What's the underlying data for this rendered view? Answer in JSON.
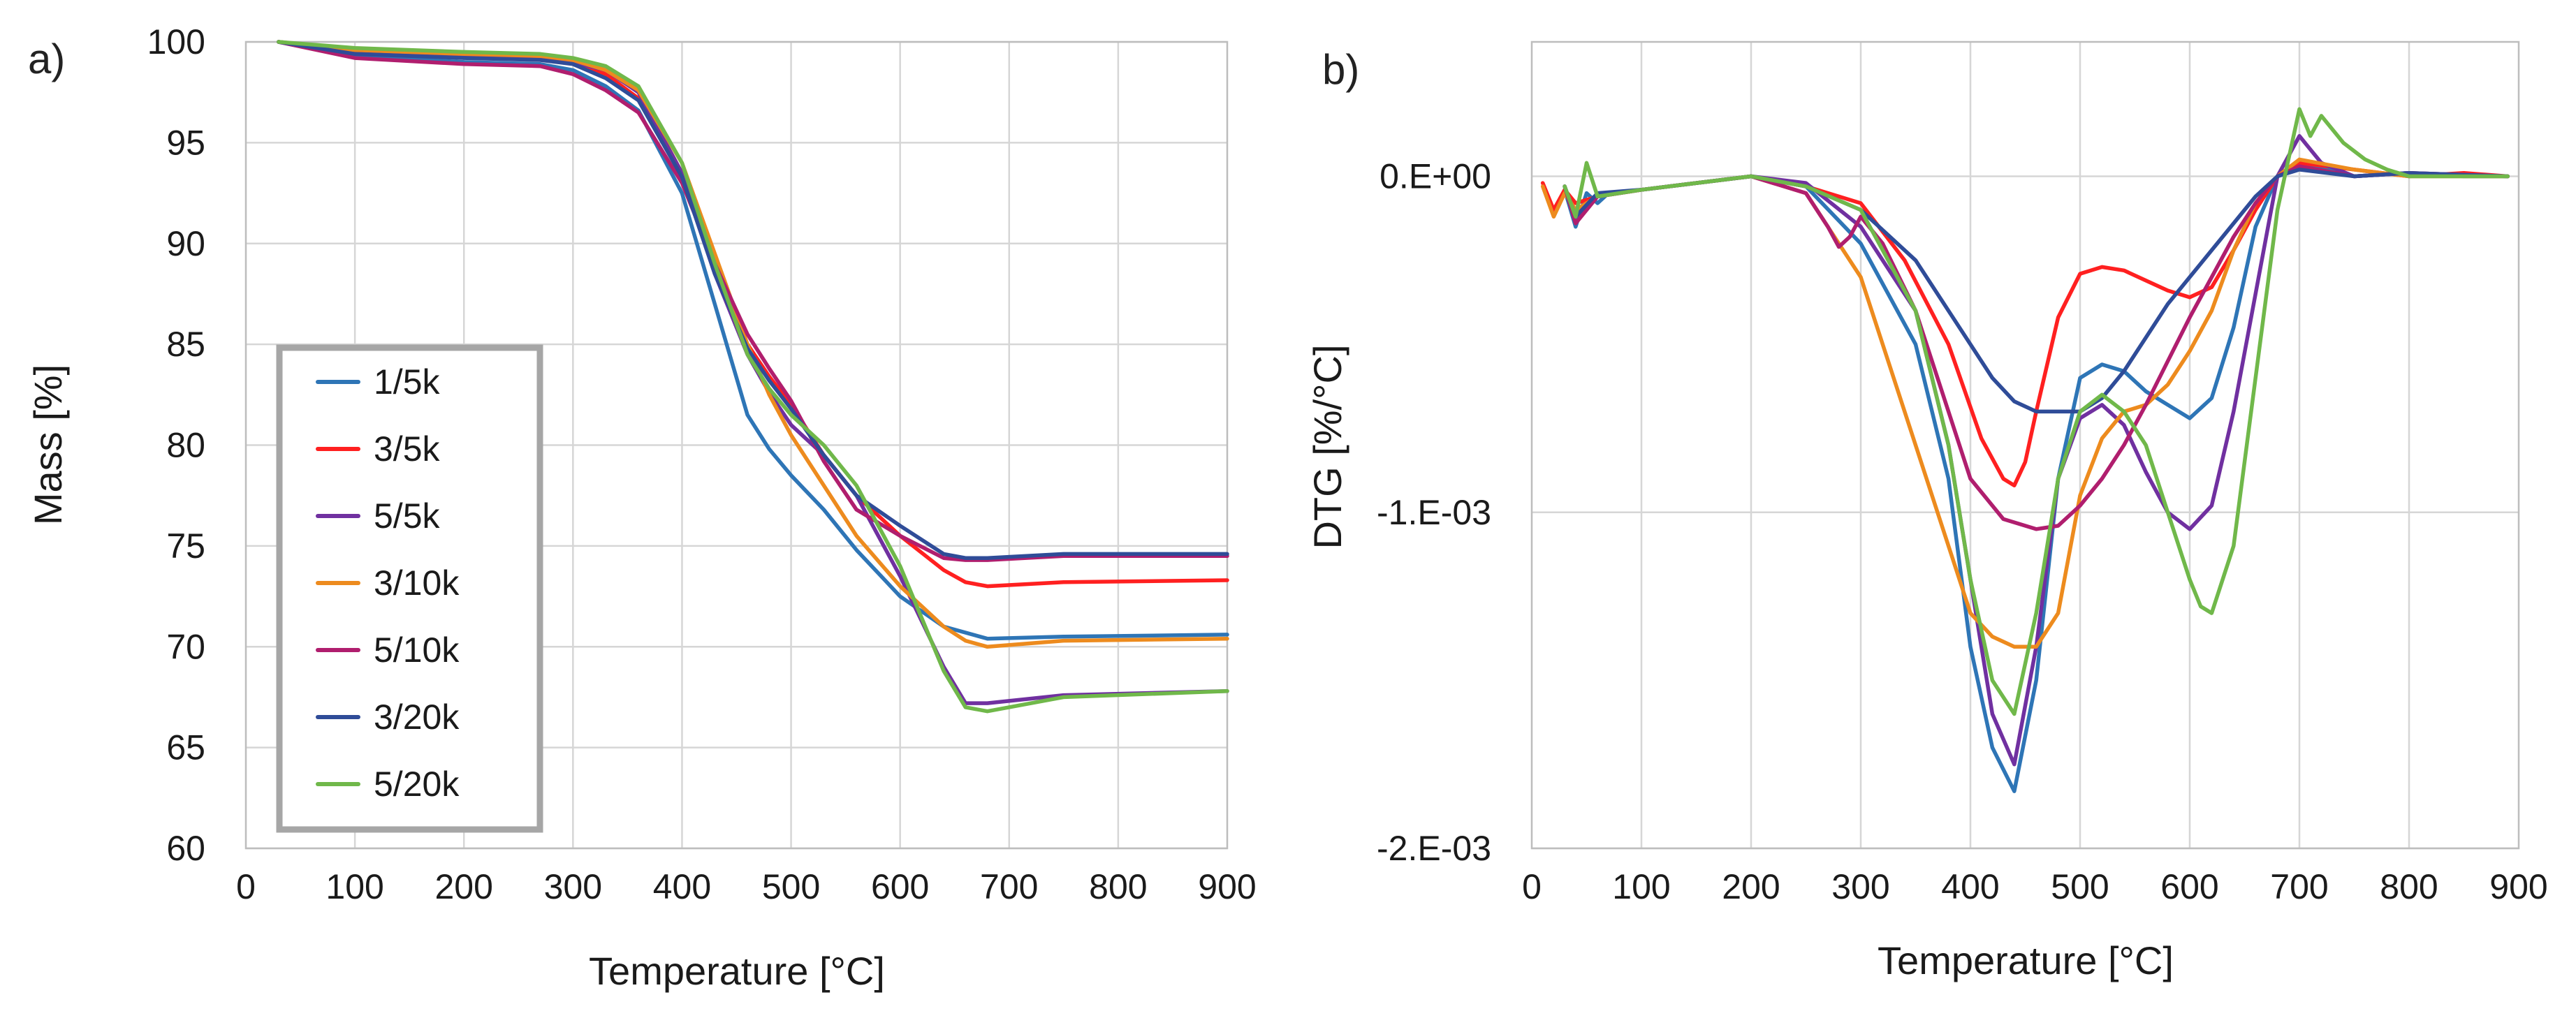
{
  "chart_data": [
    {
      "type": "line",
      "panel_label": "a)",
      "title": "",
      "xlabel": "Temperature [°C]",
      "ylabel": "Mass [%]",
      "xlim": [
        0,
        900
      ],
      "ylim": [
        60,
        100
      ],
      "xticks": [
        0,
        100,
        200,
        300,
        400,
        500,
        600,
        700,
        800,
        900
      ],
      "yticks": [
        60,
        65,
        70,
        75,
        80,
        85,
        90,
        95,
        100
      ],
      "grid": true,
      "legend_position": "lower-left",
      "series": [
        {
          "name": "1/5k",
          "color": "#2E75B6",
          "x": [
            30,
            100,
            200,
            270,
            300,
            330,
            360,
            400,
            430,
            460,
            480,
            500,
            530,
            560,
            600,
            640,
            680,
            750,
            900
          ],
          "y": [
            100,
            99.3,
            99.0,
            98.9,
            98.6,
            97.8,
            96.6,
            92.5,
            87.0,
            81.5,
            79.8,
            78.5,
            76.8,
            74.8,
            72.5,
            71.0,
            70.4,
            70.5,
            70.6
          ]
        },
        {
          "name": "3/5k",
          "color": "#FF2020",
          "x": [
            30,
            100,
            200,
            270,
            300,
            330,
            360,
            400,
            430,
            460,
            480,
            500,
            530,
            560,
            600,
            640,
            660,
            680,
            750,
            900
          ],
          "y": [
            100,
            99.5,
            99.3,
            99.2,
            99.0,
            98.4,
            97.2,
            93.5,
            89.0,
            85.0,
            83.4,
            82.0,
            79.5,
            77.5,
            75.5,
            73.8,
            73.2,
            73.0,
            73.2,
            73.3
          ]
        },
        {
          "name": "5/5k",
          "color": "#7030A0",
          "x": [
            30,
            100,
            200,
            270,
            300,
            330,
            360,
            400,
            430,
            460,
            480,
            500,
            530,
            560,
            600,
            640,
            660,
            680,
            750,
            900
          ],
          "y": [
            100,
            99.6,
            99.3,
            99.2,
            99.0,
            98.6,
            97.5,
            93.5,
            88.5,
            84.5,
            82.6,
            81.0,
            79.5,
            77.5,
            73.5,
            69.0,
            67.2,
            67.2,
            67.6,
            67.8
          ]
        },
        {
          "name": "3/10k",
          "color": "#ED8B1E",
          "x": [
            30,
            100,
            200,
            270,
            300,
            330,
            360,
            400,
            430,
            460,
            480,
            500,
            530,
            560,
            600,
            640,
            660,
            680,
            750,
            900
          ],
          "y": [
            100,
            99.6,
            99.4,
            99.3,
            99.1,
            98.6,
            97.6,
            94.0,
            89.5,
            85.0,
            82.5,
            80.5,
            78.0,
            75.5,
            73.0,
            71.0,
            70.3,
            70.0,
            70.3,
            70.4
          ]
        },
        {
          "name": "5/10k",
          "color": "#B01E6E",
          "x": [
            30,
            100,
            200,
            270,
            300,
            330,
            360,
            400,
            430,
            460,
            480,
            500,
            530,
            560,
            600,
            640,
            660,
            680,
            750,
            900
          ],
          "y": [
            100,
            99.2,
            98.9,
            98.8,
            98.4,
            97.6,
            96.5,
            93.0,
            89.0,
            85.5,
            83.8,
            82.2,
            79.2,
            76.8,
            75.5,
            74.4,
            74.3,
            74.3,
            74.5,
            74.5
          ]
        },
        {
          "name": "3/20k",
          "color": "#2F4C98",
          "x": [
            30,
            100,
            200,
            270,
            300,
            330,
            360,
            400,
            430,
            460,
            480,
            500,
            530,
            560,
            600,
            640,
            660,
            680,
            750,
            900
          ],
          "y": [
            100,
            99.4,
            99.2,
            99.1,
            98.9,
            98.2,
            97.1,
            93.3,
            88.5,
            84.8,
            83.2,
            81.8,
            79.5,
            77.5,
            76.0,
            74.6,
            74.4,
            74.4,
            74.6,
            74.6
          ]
        },
        {
          "name": "5/20k",
          "color": "#70B84A",
          "x": [
            30,
            100,
            200,
            270,
            300,
            330,
            360,
            400,
            430,
            460,
            480,
            500,
            530,
            560,
            600,
            640,
            660,
            680,
            700,
            750,
            900
          ],
          "y": [
            100,
            99.7,
            99.5,
            99.4,
            99.2,
            98.8,
            97.8,
            94.0,
            89.0,
            84.5,
            82.8,
            81.5,
            80.0,
            78.0,
            74.0,
            68.8,
            67.0,
            66.8,
            67.0,
            67.5,
            67.8
          ]
        }
      ]
    },
    {
      "type": "line",
      "panel_label": "b)",
      "title": "",
      "xlabel": "Temperature [°C]",
      "ylabel": "DTG [%/°C]",
      "xlim": [
        0,
        900
      ],
      "ylim": [
        -0.002,
        0.0004
      ],
      "xticks": [
        0,
        100,
        200,
        300,
        400,
        500,
        600,
        700,
        800,
        900
      ],
      "yticks": [
        0.0,
        -0.001,
        -0.002
      ],
      "ytick_labels": [
        "0.E+00",
        "-1.E-03",
        "-2.E-03"
      ],
      "grid": true,
      "series": [
        {
          "name": "1/5k",
          "color": "#2E75B6",
          "x": [
            30,
            40,
            50,
            60,
            70,
            100,
            200,
            250,
            300,
            350,
            380,
            400,
            420,
            440,
            460,
            480,
            500,
            520,
            540,
            560,
            580,
            600,
            620,
            640,
            660,
            680,
            700,
            750,
            800,
            850,
            890
          ],
          "y": [
            -4e-05,
            -0.00015,
            -5e-05,
            -8e-05,
            -5e-05,
            -4e-05,
            0.0,
            -3e-05,
            -0.0002,
            -0.0005,
            -0.0009,
            -0.0014,
            -0.0017,
            -0.00183,
            -0.0015,
            -0.0009,
            -0.0006,
            -0.00056,
            -0.00058,
            -0.00064,
            -0.00068,
            -0.00072,
            -0.00066,
            -0.00045,
            -0.00015,
            0.0,
            4e-05,
            0.0,
            1e-05,
            0.0,
            0.0
          ]
        },
        {
          "name": "3/5k",
          "color": "#FF2020",
          "x": [
            10,
            20,
            30,
            40,
            60,
            100,
            150,
            200,
            250,
            300,
            340,
            380,
            410,
            430,
            440,
            450,
            460,
            480,
            500,
            520,
            540,
            560,
            580,
            600,
            620,
            640,
            660,
            680,
            700,
            750,
            800,
            850,
            890
          ],
          "y": [
            -2e-05,
            -0.0001,
            -4e-05,
            -8e-05,
            -6e-05,
            -4e-05,
            -2e-05,
            0.0,
            -3e-05,
            -8e-05,
            -0.00025,
            -0.0005,
            -0.00078,
            -0.0009,
            -0.00092,
            -0.00085,
            -0.0007,
            -0.00042,
            -0.00029,
            -0.00027,
            -0.00028,
            -0.00031,
            -0.00034,
            -0.00036,
            -0.00033,
            -0.00022,
            -0.0001,
            0.0,
            4e-05,
            2e-05,
            0.0,
            1e-05,
            0.0
          ]
        },
        {
          "name": "5/5k",
          "color": "#7030A0",
          "x": [
            30,
            40,
            60,
            100,
            200,
            250,
            300,
            350,
            380,
            400,
            420,
            440,
            460,
            480,
            500,
            520,
            540,
            560,
            580,
            600,
            620,
            640,
            660,
            680,
            700,
            720,
            750,
            800,
            890
          ],
          "y": [
            -3e-05,
            -0.00012,
            -6e-05,
            -4e-05,
            0.0,
            -2e-05,
            -0.00015,
            -0.0004,
            -0.0008,
            -0.0012,
            -0.0016,
            -0.00175,
            -0.0014,
            -0.0009,
            -0.00072,
            -0.00068,
            -0.00074,
            -0.00088,
            -0.001,
            -0.00105,
            -0.00098,
            -0.0007,
            -0.00035,
            0.0,
            0.00012,
            4e-05,
            0.0,
            1e-05,
            0.0
          ]
        },
        {
          "name": "3/10k",
          "color": "#ED8B1E",
          "x": [
            10,
            20,
            30,
            40,
            60,
            100,
            200,
            250,
            300,
            350,
            380,
            400,
            420,
            440,
            460,
            480,
            500,
            520,
            540,
            560,
            580,
            600,
            620,
            640,
            660,
            680,
            700,
            750,
            800,
            890
          ],
          "y": [
            -3e-05,
            -0.00012,
            -5e-05,
            -0.0001,
            -6e-05,
            -4e-05,
            0.0,
            -5e-05,
            -0.0003,
            -0.0008,
            -0.0011,
            -0.0013,
            -0.00137,
            -0.0014,
            -0.0014,
            -0.0013,
            -0.00095,
            -0.00078,
            -0.0007,
            -0.00068,
            -0.00062,
            -0.00052,
            -0.0004,
            -0.00022,
            -8e-05,
            0.0,
            5e-05,
            2e-05,
            0.0,
            0.0
          ]
        },
        {
          "name": "5/10k",
          "color": "#B01E6E",
          "x": [
            30,
            40,
            60,
            100,
            200,
            250,
            270,
            280,
            290,
            300,
            320,
            350,
            380,
            400,
            430,
            460,
            480,
            500,
            520,
            540,
            560,
            580,
            600,
            620,
            640,
            660,
            680,
            700,
            750,
            800,
            890
          ],
          "y": [
            -3e-05,
            -0.00014,
            -6e-05,
            -4e-05,
            0.0,
            -5e-05,
            -0.00015,
            -0.00021,
            -0.00018,
            -0.00012,
            -0.0002,
            -0.0004,
            -0.0007,
            -0.0009,
            -0.00102,
            -0.00105,
            -0.00104,
            -0.00098,
            -0.0009,
            -0.0008,
            -0.00068,
            -0.00055,
            -0.00042,
            -0.0003,
            -0.00018,
            -8e-05,
            0.0,
            3e-05,
            0.0,
            1e-05,
            0.0
          ]
        },
        {
          "name": "3/20k",
          "color": "#2F4C98",
          "x": [
            30,
            40,
            60,
            100,
            200,
            250,
            300,
            350,
            380,
            400,
            420,
            440,
            460,
            480,
            500,
            520,
            540,
            560,
            580,
            600,
            620,
            640,
            660,
            680,
            700,
            750,
            800,
            890
          ],
          "y": [
            -3e-05,
            -0.00012,
            -5e-05,
            -4e-05,
            0.0,
            -3e-05,
            -0.0001,
            -0.00025,
            -0.0004,
            -0.0005,
            -0.0006,
            -0.00067,
            -0.0007,
            -0.0007,
            -0.0007,
            -0.00066,
            -0.00058,
            -0.00048,
            -0.00038,
            -0.0003,
            -0.00022,
            -0.00014,
            -6e-05,
            0.0,
            2e-05,
            0.0,
            1e-05,
            0.0
          ]
        },
        {
          "name": "5/20k",
          "color": "#70B84A",
          "x": [
            30,
            40,
            50,
            60,
            100,
            200,
            250,
            300,
            350,
            380,
            400,
            420,
            440,
            460,
            480,
            500,
            520,
            540,
            560,
            580,
            600,
            610,
            620,
            640,
            660,
            680,
            700,
            710,
            720,
            740,
            760,
            780,
            800,
            850,
            890
          ],
          "y": [
            -3e-05,
            -0.00012,
            4e-05,
            -6e-05,
            -4e-05,
            0.0,
            -3e-05,
            -0.0001,
            -0.0004,
            -0.0008,
            -0.0012,
            -0.0015,
            -0.0016,
            -0.0013,
            -0.0009,
            -0.0007,
            -0.00065,
            -0.0007,
            -0.0008,
            -0.001,
            -0.0012,
            -0.00128,
            -0.0013,
            -0.0011,
            -0.0006,
            -0.0001,
            0.0002,
            0.00012,
            0.00018,
            0.0001,
            5e-05,
            2e-05,
            0.0,
            0.0,
            0.0
          ]
        }
      ]
    }
  ]
}
